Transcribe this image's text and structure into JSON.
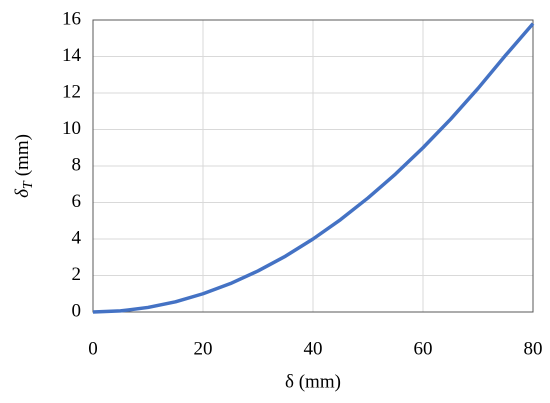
{
  "chart_data": {
    "type": "line",
    "x_label": "δ (mm)",
    "y_label": {
      "symbol": "δ",
      "subscript": "T",
      "unit": "(mm)"
    },
    "x": [
      0,
      5,
      10,
      15,
      20,
      25,
      30,
      35,
      40,
      45,
      50,
      55,
      60,
      65,
      70,
      75,
      80
    ],
    "series": [
      {
        "color": "#4472c4",
        "values": [
          0,
          0.06,
          0.25,
          0.56,
          1,
          1.56,
          2.25,
          3.06,
          4,
          5.06,
          6.25,
          7.56,
          9,
          10.56,
          12.25,
          14.06,
          15.8
        ]
      }
    ],
    "xlim": [
      0,
      80
    ],
    "xticks": [
      0,
      20,
      40,
      60,
      80
    ],
    "ylim": [
      0,
      16
    ],
    "yticks": [
      0,
      2,
      4,
      6,
      8,
      10,
      12,
      14,
      16
    ],
    "grid": true
  }
}
